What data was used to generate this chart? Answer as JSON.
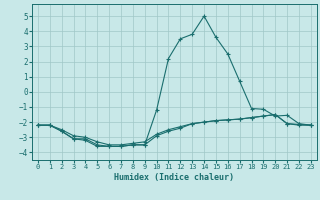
{
  "xlabel": "Humidex (Indice chaleur)",
  "xlim": [
    -0.5,
    23.5
  ],
  "ylim": [
    -4.5,
    5.8
  ],
  "yticks": [
    -4,
    -3,
    -2,
    -1,
    0,
    1,
    2,
    3,
    4,
    5
  ],
  "xticks": [
    0,
    1,
    2,
    3,
    4,
    5,
    6,
    7,
    8,
    9,
    10,
    11,
    12,
    13,
    14,
    15,
    16,
    17,
    18,
    19,
    20,
    21,
    22,
    23
  ],
  "bg_color": "#c8e8e8",
  "line_color": "#1a6e6e",
  "grid_color": "#a0c8c8",
  "line1_x": [
    0,
    1,
    2,
    3,
    4,
    5,
    6,
    7,
    8,
    9,
    10,
    11,
    12,
    13,
    14,
    15,
    16,
    17,
    18,
    19,
    20,
    21,
    22,
    23
  ],
  "line1_y": [
    -2.2,
    -2.2,
    -2.5,
    -2.9,
    -3.0,
    -3.3,
    -3.5,
    -3.5,
    -3.4,
    -3.3,
    -2.8,
    -2.5,
    -2.3,
    -2.1,
    -2.0,
    -1.9,
    -1.85,
    -1.8,
    -1.7,
    -1.6,
    -1.5,
    -2.1,
    -2.15,
    -2.2
  ],
  "line2_x": [
    0,
    1,
    2,
    3,
    4,
    5,
    6,
    7,
    8,
    9,
    10,
    11,
    12,
    13,
    14,
    15,
    16,
    17,
    18,
    19,
    20,
    21,
    22,
    23
  ],
  "line2_y": [
    -2.2,
    -2.2,
    -2.6,
    -3.1,
    -3.1,
    -3.5,
    -3.6,
    -3.6,
    -3.5,
    -3.5,
    -1.2,
    2.2,
    3.5,
    3.8,
    5.0,
    3.6,
    2.5,
    0.7,
    -1.1,
    -1.15,
    -1.6,
    -1.55,
    -2.1,
    -2.2
  ],
  "line3_x": [
    0,
    1,
    2,
    3,
    4,
    5,
    6,
    7,
    8,
    9,
    10,
    11,
    12,
    13,
    14,
    15,
    16,
    17,
    18,
    19,
    20,
    21,
    22,
    23
  ],
  "line3_y": [
    -2.2,
    -2.2,
    -2.6,
    -3.1,
    -3.2,
    -3.6,
    -3.6,
    -3.6,
    -3.5,
    -3.5,
    -2.9,
    -2.6,
    -2.4,
    -2.1,
    -2.0,
    -1.9,
    -1.85,
    -1.8,
    -1.7,
    -1.6,
    -1.5,
    -2.1,
    -2.2,
    -2.2
  ]
}
